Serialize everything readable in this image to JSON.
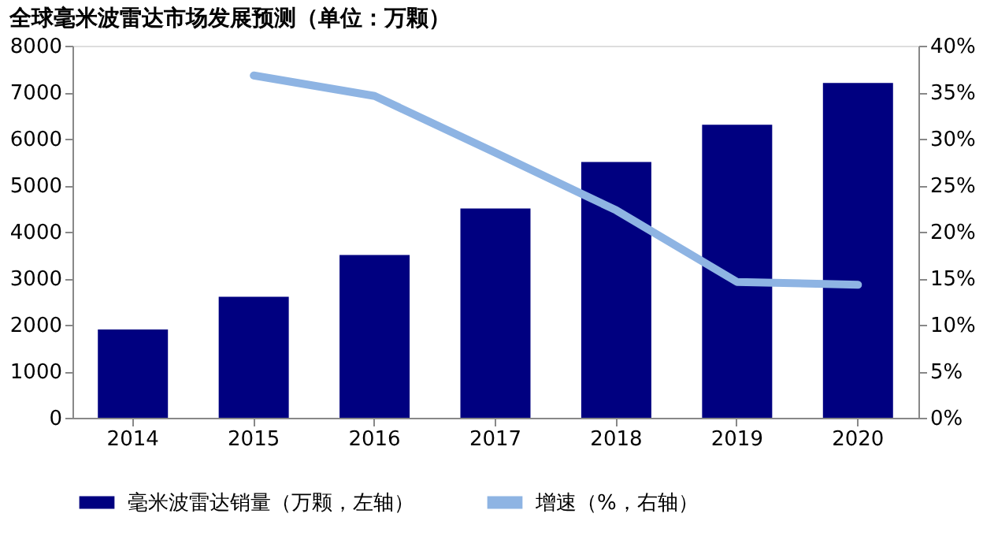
{
  "chart_data": {
    "type": "bar",
    "title": "全球毫米波雷达市场发展预测（单位：万颗）",
    "categories": [
      "2014",
      "2015",
      "2016",
      "2017",
      "2018",
      "2019",
      "2020"
    ],
    "series": [
      {
        "name": "毫米波雷达销量（万颗，左轴）",
        "color": "#000080",
        "values": [
          1900,
          2600,
          3500,
          4500,
          5500,
          6300,
          7200
        ]
      },
      {
        "name": "增速（%，右轴）",
        "type": "line",
        "axis": "y2",
        "color": "#8eb4e3",
        "values": [
          null,
          36.8,
          34.6,
          28.5,
          22.3,
          14.6,
          14.3
        ]
      }
    ],
    "ylim": [
      0,
      8000
    ],
    "yticks": [
      0,
      1000,
      2000,
      3000,
      4000,
      5000,
      6000,
      7000,
      8000
    ],
    "y2lim": [
      0,
      40
    ],
    "y2ticks": [
      {
        "value": 0,
        "label": "0%"
      },
      {
        "value": 5,
        "label": "5%"
      },
      {
        "value": 10,
        "label": "10%"
      },
      {
        "value": 15,
        "label": "15%"
      },
      {
        "value": 20,
        "label": "20%"
      },
      {
        "value": 25,
        "label": "25%"
      },
      {
        "value": 30,
        "label": "30%"
      },
      {
        "value": 35,
        "label": "35%"
      },
      {
        "value": 40,
        "label": "40%"
      }
    ],
    "legend": "bottom",
    "grid": false,
    "marker": "none",
    "line_style": "solid"
  }
}
